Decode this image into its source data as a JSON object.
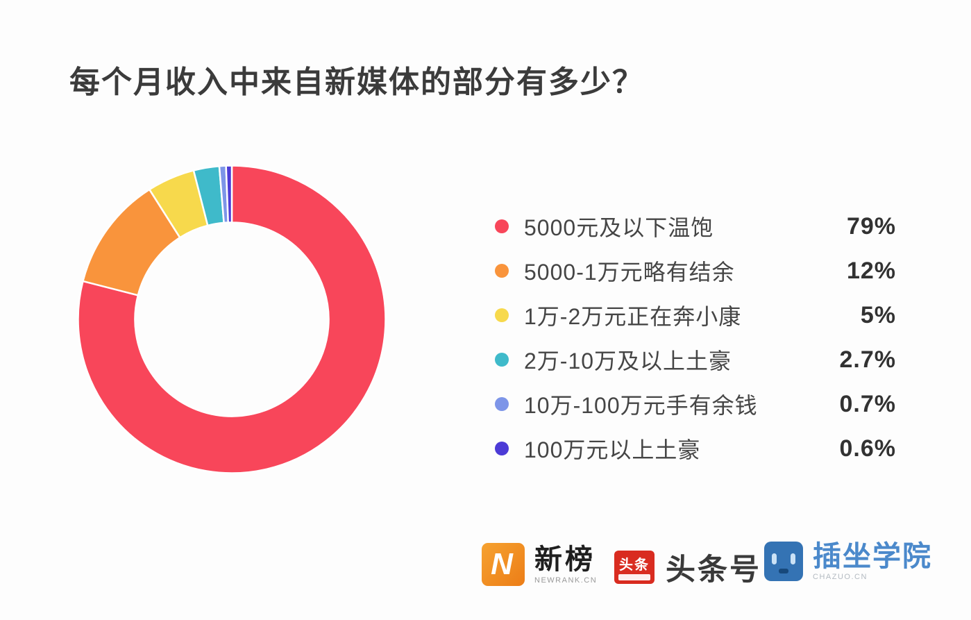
{
  "page": {
    "background": "#FDFDFD"
  },
  "chart_data": {
    "type": "pie",
    "subtype": "donut",
    "title": "每个月收入中来自新媒体的部分有多少？",
    "categories": [
      "5000元及以下温饱",
      "5000-1万元略有结余",
      "1万-2万元正在奔小康",
      "2万-10万及以上土豪",
      "10万-100万元手有余钱",
      "100万元以上土豪"
    ],
    "values": [
      79,
      12,
      5,
      2.7,
      0.7,
      0.6
    ],
    "unit": "%",
    "slices": [
      {
        "label": "5000元及以下温饱",
        "value": 79,
        "display": "79%",
        "color": "#F8465A"
      },
      {
        "label": "5000-1万元略有结余",
        "value": 12,
        "display": "12%",
        "color": "#F9943C"
      },
      {
        "label": "1万-2万元正在奔小康",
        "value": 5,
        "display": "5%",
        "color": "#F7D94C"
      },
      {
        "label": "2万-10万及以上土豪",
        "value": 2.7,
        "display": "2.7%",
        "color": "#3FBACA"
      },
      {
        "label": "10万-100万元手有余钱",
        "value": 0.7,
        "display": "0.7%",
        "color": "#7D95E8"
      },
      {
        "label": "100万元以上土豪",
        "value": 0.6,
        "display": "0.6%",
        "color": "#4C3BD6"
      }
    ],
    "legend_position": "right",
    "start_angle_deg": 0,
    "direction": "clockwise",
    "donut_hole_ratio": 0.63,
    "slice_gap_color": "#FFFFFF"
  },
  "footer": {
    "newrank": {
      "wordmark": "新榜",
      "subtext": "NEWRANK.CN",
      "icon_letter": "N",
      "brand_color": "#F08519"
    },
    "toutiao": {
      "wordmark": "头条号",
      "icon_text": "头条",
      "brand_color": "#D92C20"
    },
    "chazuo": {
      "wordmark": "插坐学院",
      "subtext": "CHAZUO.CN",
      "brand_color": "#3473B4",
      "text_color": "#4B89CB"
    }
  }
}
